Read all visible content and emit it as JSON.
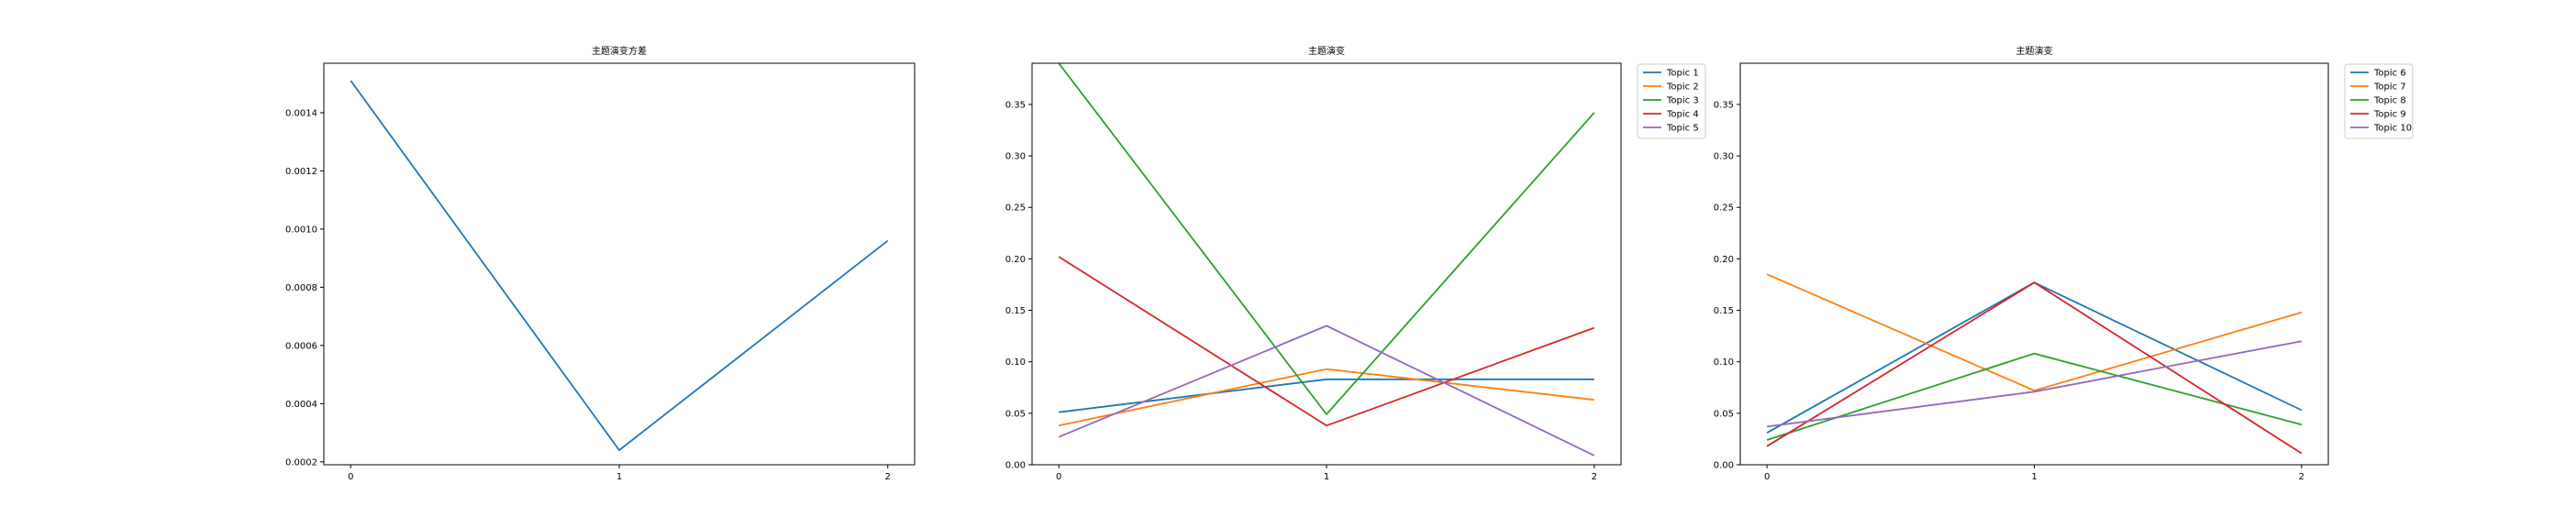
{
  "chart_data": [
    {
      "type": "line",
      "title": "主题演变方差",
      "xlabel": "",
      "ylabel": "",
      "x": [
        0,
        1,
        2
      ],
      "xticks": [
        "0",
        "1",
        "2"
      ],
      "xlim": [
        -0.1,
        2.1
      ],
      "ylim": [
        0.00019,
        0.00157
      ],
      "yticks": [
        "0.0002",
        "0.0004",
        "0.0006",
        "0.0008",
        "0.0010",
        "0.0012",
        "0.0014"
      ],
      "grid": false,
      "legend": "none",
      "series": [
        {
          "values": [
            0.00151,
            0.00024,
            0.00096
          ],
          "color": "#1f77b4"
        }
      ]
    },
    {
      "type": "line",
      "title": "主题演变",
      "xlabel": "",
      "ylabel": "",
      "x": [
        0,
        1,
        2
      ],
      "xticks": [
        "0",
        "1",
        "2"
      ],
      "xlim": [
        -0.1,
        2.1
      ],
      "ylim": [
        0,
        0.39
      ],
      "yticks": [
        "0.00",
        "0.05",
        "0.10",
        "0.15",
        "0.20",
        "0.25",
        "0.30",
        "0.35"
      ],
      "grid": false,
      "legend": "outside-right",
      "series": [
        {
          "name": "Topic 1",
          "values": [
            0.051,
            0.083,
            0.083
          ],
          "color": "#1f77b4"
        },
        {
          "name": "Topic 2",
          "values": [
            0.038,
            0.093,
            0.063
          ],
          "color": "#ff7f0e"
        },
        {
          "name": "Topic 3",
          "values": [
            0.39,
            0.049,
            0.342
          ],
          "color": "#2ca02c"
        },
        {
          "name": "Topic 4",
          "values": [
            0.202,
            0.038,
            0.133
          ],
          "color": "#d62728"
        },
        {
          "name": "Topic 5",
          "values": [
            0.027,
            0.135,
            0.009
          ],
          "color": "#9467bd"
        }
      ]
    },
    {
      "type": "line",
      "title": "主题演变",
      "xlabel": "",
      "ylabel": "",
      "x": [
        0,
        1,
        2
      ],
      "xticks": [
        "0",
        "1",
        "2"
      ],
      "xlim": [
        -0.1,
        2.1
      ],
      "ylim": [
        0,
        0.39
      ],
      "yticks": [
        "0.00",
        "0.05",
        "0.10",
        "0.15",
        "0.20",
        "0.25",
        "0.30",
        "0.35"
      ],
      "grid": false,
      "legend": "outside-right",
      "series": [
        {
          "name": "Topic 6",
          "values": [
            0.031,
            0.177,
            0.053
          ],
          "color": "#1f77b4"
        },
        {
          "name": "Topic 7",
          "values": [
            0.185,
            0.072,
            0.148
          ],
          "color": "#ff7f0e"
        },
        {
          "name": "Topic 8",
          "values": [
            0.024,
            0.108,
            0.039
          ],
          "color": "#2ca02c"
        },
        {
          "name": "Topic 9",
          "values": [
            0.018,
            0.177,
            0.011
          ],
          "color": "#d62728"
        },
        {
          "name": "Topic 10",
          "values": [
            0.037,
            0.071,
            0.12
          ],
          "color": "#9467bd"
        }
      ]
    }
  ]
}
